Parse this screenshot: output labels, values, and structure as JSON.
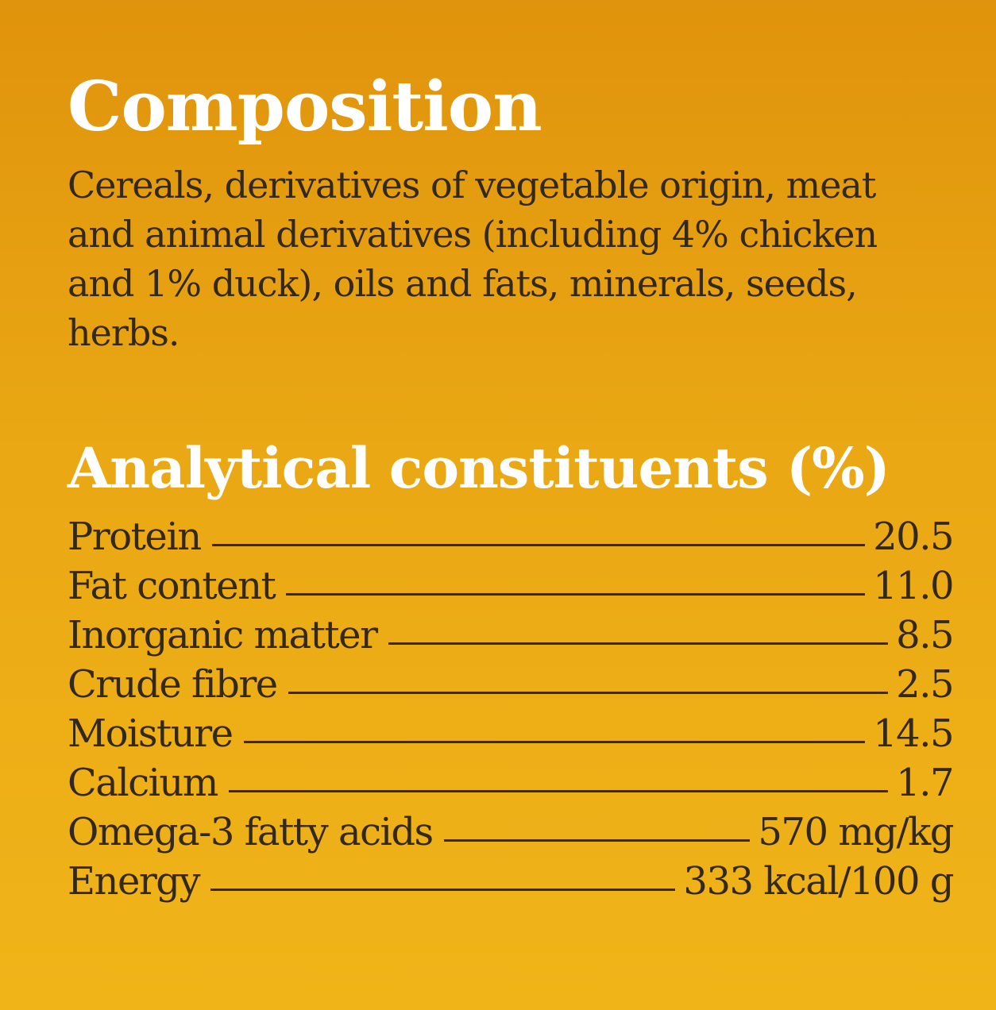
{
  "composition": {
    "title": "Composition",
    "text": "Cereals, derivatives of vegetable origin, meat and animal derivatives (including 4% chicken and 1% duck), oils and fats, minerals, seeds, herbs."
  },
  "analytical": {
    "title": "Analytical constituents (%)",
    "rows": [
      {
        "label": "Protein",
        "value": "20.5"
      },
      {
        "label": "Fat content",
        "value": "11.0"
      },
      {
        "label": "Inorganic matter",
        "value": "8.5"
      },
      {
        "label": "Crude fibre",
        "value": "2.5"
      },
      {
        "label": "Moisture",
        "value": "14.5"
      },
      {
        "label": "Calcium",
        "value": "1.7"
      },
      {
        "label": "Omega-3 fatty acids",
        "value": "570 mg/kg"
      },
      {
        "label": "Energy",
        "value": "333 kcal/100 g"
      }
    ]
  }
}
